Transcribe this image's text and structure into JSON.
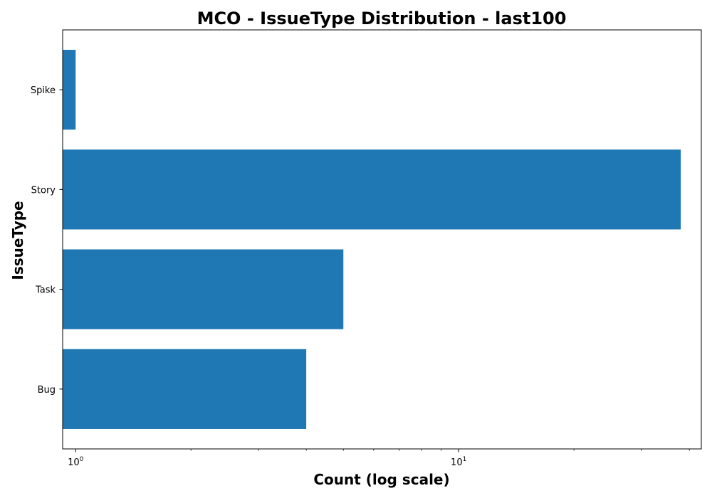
{
  "chart_data": {
    "type": "bar",
    "orientation": "horizontal",
    "title": "MCO - IssueType Distribution - last100",
    "xlabel": "Count (log scale)",
    "ylabel": "IssueType",
    "xscale": "log",
    "xlim": [
      0.925,
      43
    ],
    "categories": [
      "Bug",
      "Task",
      "Story",
      "Spike"
    ],
    "values": [
      4,
      5,
      38,
      1
    ],
    "x_major_ticks": [
      {
        "value": 1,
        "base": "10",
        "exp": "0"
      },
      {
        "value": 10,
        "base": "10",
        "exp": "1"
      }
    ],
    "x_minor_ticks": [
      2,
      3,
      4,
      5,
      6,
      7,
      8,
      9,
      20,
      30,
      40
    ],
    "grid": false,
    "legend": "none",
    "bar_color": "#1f77b4"
  }
}
